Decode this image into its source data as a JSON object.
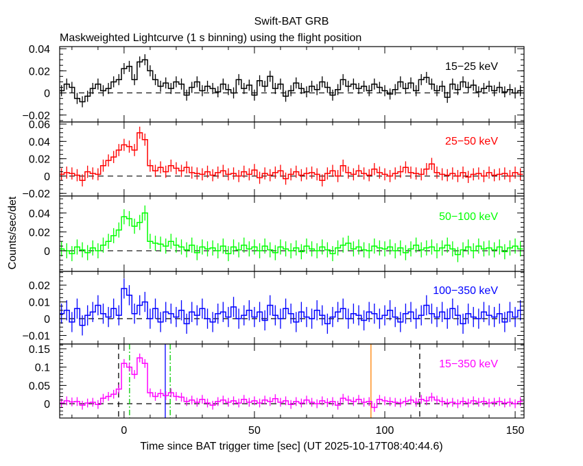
{
  "chart_data": {
    "type": "line",
    "title": "Swift-BAT GRB",
    "subtitle": "Maskweighted Lightcurve (1 s binning) using the flight position",
    "xlabel": "Time since BAT trigger time [sec] (UT 2025-10-17T08:40:44.6)",
    "ylabel": "Counts/sec/det",
    "xlim": [
      -24.7,
      153.4
    ],
    "x_ticks": [
      0,
      50,
      100,
      150
    ],
    "x_tick_labels": [
      "0",
      "50",
      "100",
      "150"
    ],
    "x_start": -24,
    "x_step": 2,
    "grid": false,
    "panels": [
      {
        "name": "15-25 keV",
        "label": "15−25 keV",
        "color": "#000000",
        "ylim": [
          -0.0263,
          0.0419
        ],
        "y_ticks": [
          -0.02,
          0,
          0.02,
          0.04
        ],
        "y_tick_labels": [
          "−0.02",
          "0",
          "0.02",
          "0.04"
        ],
        "minor": 0.005,
        "error": 0.005,
        "values": [
          0.002,
          0.008,
          0.005,
          -0.005,
          -0.008,
          -0.003,
          0.004,
          0.008,
          0.002,
          0.004,
          0.01,
          0.012,
          0.022,
          0.024,
          0.012,
          0.028,
          0.03,
          0.02,
          0.012,
          0.006,
          0.009,
          0.004,
          0.01,
          0.008,
          -0.002,
          0.005,
          0.01,
          0.002,
          0.006,
          0.004,
          0.001,
          0.008,
          0.003,
          0.0,
          0.012,
          0.004,
          0.007,
          -0.002,
          0.011,
          0.006,
          0.015,
          0.004,
          0.008,
          -0.003,
          0.002,
          0.009,
          0.004,
          0.001,
          0.006,
          0.003,
          0.01,
          0.005,
          -0.002,
          0.003,
          0.012,
          0.006,
          0.008,
          0.004,
          0.006,
          0.002,
          0.008,
          0.005,
          0.002,
          -0.001,
          0.003,
          0.01,
          0.004,
          0.009,
          0.002,
          0.012,
          0.014,
          0.008,
          0.002,
          0.006,
          -0.004,
          0.008,
          0.003,
          0.01,
          0.005,
          0.007,
          0.001,
          0.004,
          0.006,
          0.002,
          0.005,
          0.001,
          0.003,
          0.0,
          0.002
        ]
      },
      {
        "name": "25-50 keV",
        "label": "25−50 keV",
        "color": "#ff0000",
        "ylim": [
          -0.023,
          0.0624
        ],
        "y_ticks": [
          -0.02,
          0,
          0.02,
          0.04,
          0.06
        ],
        "y_tick_labels": [
          "−0.02",
          "0",
          "0.02",
          "0.04",
          "0.06"
        ],
        "minor": 0.005,
        "error": 0.007,
        "values": [
          0.002,
          0.004,
          0.003,
          0.001,
          -0.005,
          0.005,
          0.003,
          0.002,
          0.012,
          0.018,
          0.022,
          0.03,
          0.036,
          0.034,
          0.03,
          0.05,
          0.042,
          0.012,
          0.006,
          0.01,
          0.005,
          0.012,
          0.009,
          0.006,
          0.01,
          0.004,
          0.003,
          0.002,
          0.005,
          0.001,
          0.004,
          0.006,
          0.002,
          0.003,
          0.0,
          0.005,
          0.002,
          0.007,
          -0.002,
          0.003,
          0.001,
          0.004,
          0.006,
          -0.003,
          0.002,
          0.005,
          0.001,
          0.003,
          0.004,
          0.002,
          -0.005,
          0.003,
          0.006,
          0.0,
          0.012,
          0.004,
          0.002,
          0.006,
          0.003,
          0.001,
          0.008,
          0.004,
          0.002,
          0.0,
          0.003,
          0.005,
          0.01,
          0.004,
          0.003,
          0.002,
          0.008,
          0.014,
          0.004,
          0.002,
          0.001,
          0.003,
          0.0,
          0.004,
          -0.001,
          0.002,
          0.003,
          0.0,
          0.004,
          0.001,
          0.002,
          0.003,
          0.0,
          0.004,
          0.002
        ]
      },
      {
        "name": "50-100 keV",
        "label": "50−100 keV",
        "color": "#00ff00",
        "ylim": [
          -0.0218,
          0.058
        ],
        "y_ticks": [
          0,
          0.02,
          0.04
        ],
        "y_tick_labels": [
          "0",
          "0.02",
          "0.04"
        ],
        "minor": 0.005,
        "error": 0.008,
        "values": [
          0.002,
          0.0,
          -0.003,
          0.004,
          0.001,
          -0.002,
          0.003,
          0.0,
          0.006,
          0.01,
          0.016,
          0.022,
          0.036,
          0.034,
          0.026,
          0.03,
          0.04,
          0.01,
          0.008,
          0.007,
          0.005,
          0.01,
          0.006,
          0.004,
          0.001,
          0.006,
          -0.002,
          0.004,
          0.002,
          0.003,
          0.0,
          0.005,
          -0.003,
          0.004,
          0.001,
          0.006,
          0.002,
          0.004,
          0.0,
          0.005,
          0.001,
          -0.002,
          0.004,
          0.002,
          0.0,
          0.003,
          -0.001,
          0.005,
          0.002,
          0.0,
          0.004,
          0.001,
          -0.003,
          0.003,
          0.006,
          0.008,
          0.002,
          0.004,
          0.001,
          0.0,
          0.005,
          0.003,
          0.002,
          0.004,
          0.0,
          0.003,
          -0.002,
          0.002,
          0.006,
          0.001,
          0.003,
          0.004,
          0.0,
          0.003,
          0.006,
          0.002,
          -0.004,
          0.001,
          0.004,
          0.0,
          0.005,
          0.002,
          0.003,
          0.001,
          0.004,
          -0.001,
          0.003,
          0.005,
          0.002
        ]
      },
      {
        "name": "100-350 keV",
        "label": "100−350 keV",
        "color": "#0000ff",
        "ylim": [
          -0.0151,
          0.0282
        ],
        "y_ticks": [
          -0.01,
          0,
          0.01,
          0.02
        ],
        "y_tick_labels": [
          "−0.01",
          "0",
          "0.01",
          "0.02"
        ],
        "minor": 0.0025,
        "error": 0.006,
        "values": [
          0.003,
          0.005,
          -0.002,
          0.006,
          -0.004,
          0.002,
          0.004,
          0.008,
          0.003,
          0.001,
          0.006,
          0.002,
          0.018,
          0.014,
          0.003,
          0.008,
          0.01,
          0.0,
          0.006,
          -0.002,
          0.004,
          0.003,
          0.001,
          0.005,
          -0.003,
          0.004,
          0.002,
          0.006,
          0.0,
          -0.002,
          0.003,
          0.004,
          0.001,
          0.007,
          0.0,
          0.002,
          0.005,
          0.001,
          0.004,
          -0.001,
          0.008,
          0.002,
          0.0,
          0.006,
          0.003,
          -0.002,
          0.004,
          0.001,
          0.0,
          0.005,
          0.002,
          -0.003,
          0.001,
          0.004,
          0.006,
          0.0,
          0.003,
          0.002,
          -0.001,
          0.004,
          0.003,
          0.0,
          0.002,
          0.005,
          0.001,
          -0.002,
          0.003,
          0.004,
          0.0,
          0.002,
          0.008,
          0.003,
          0.001,
          0.004,
          0.0,
          0.006,
          0.002,
          -0.003,
          0.003,
          0.001,
          0.0,
          0.004,
          0.002,
          0.001,
          0.003,
          -0.002,
          0.004,
          0.001,
          0.005
        ]
      },
      {
        "name": "15-350 keV",
        "label": "15−350 keV",
        "color": "#ff00ff",
        "ylim": [
          -0.039,
          0.163
        ],
        "y_ticks": [
          0,
          0.05,
          0.1,
          0.15
        ],
        "y_tick_labels": [
          "0",
          "0.05",
          "0.1",
          "0.15"
        ],
        "minor": 0.01,
        "error": 0.012,
        "values": [
          0.002,
          0.008,
          0.005,
          0.006,
          -0.004,
          0.002,
          0.004,
          -0.002,
          0.015,
          0.02,
          0.026,
          0.04,
          0.11,
          0.1,
          0.08,
          0.125,
          0.11,
          0.03,
          0.02,
          0.028,
          0.022,
          0.03,
          0.02,
          0.018,
          0.006,
          0.01,
          0.004,
          0.012,
          0.002,
          -0.004,
          0.006,
          0.01,
          0.004,
          0.008,
          0.002,
          0.012,
          0.004,
          0.008,
          0.002,
          0.01,
          0.006,
          0.014,
          0.004,
          0.008,
          -0.002,
          0.006,
          0.002,
          0.01,
          0.004,
          0.0,
          0.008,
          0.003,
          0.006,
          -0.004,
          0.015,
          0.01,
          0.006,
          0.012,
          0.004,
          0.006,
          -0.01,
          0.012,
          0.008,
          0.006,
          0.004,
          0.002,
          0.006,
          0.01,
          0.004,
          0.012,
          0.008,
          0.018,
          0.01,
          0.006,
          0.002,
          0.004,
          0.0,
          0.006,
          0.002,
          0.008,
          0.004,
          0.006,
          0.002,
          0.004,
          0.006,
          0.002,
          0.004,
          0.0,
          0.006
        ],
        "markers": [
          {
            "t": -2.1,
            "color": "#000000",
            "style": "dashed"
          },
          {
            "t": 2.1,
            "color": "#00cc00",
            "style": "dashdot"
          },
          {
            "t": 15.8,
            "color": "#0000ff",
            "style": "solid"
          },
          {
            "t": 17.7,
            "color": "#00cc00",
            "style": "dashdot"
          },
          {
            "t": 94.7,
            "color": "#ff8000",
            "style": "solid"
          },
          {
            "t": 113.4,
            "color": "#000000",
            "style": "dashed"
          }
        ]
      }
    ]
  }
}
